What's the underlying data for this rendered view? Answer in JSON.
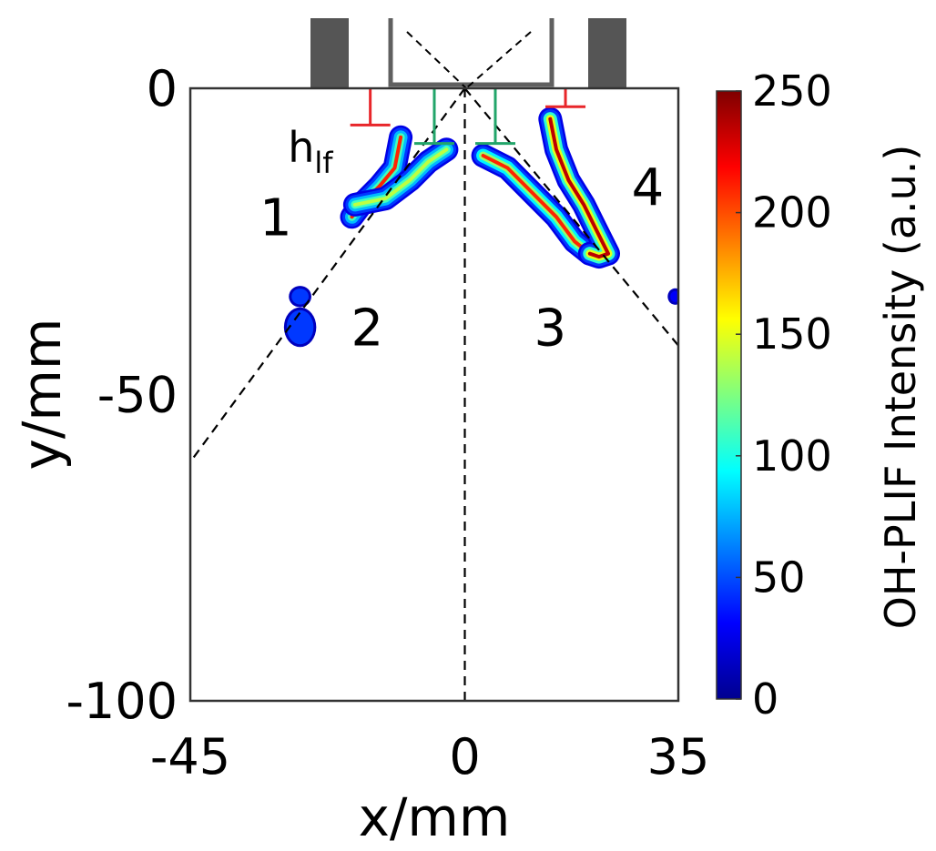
{
  "chart_data": {
    "type": "heatmap",
    "title": "",
    "xlabel": "x/mm",
    "ylabel": "y/mm",
    "xlim": [
      -45,
      35
    ],
    "ylim": [
      -100,
      0
    ],
    "x_ticks": [
      "-45",
      "0",
      "35"
    ],
    "y_ticks": [
      "0",
      "-50",
      "-100"
    ],
    "colorbar": {
      "label": "OH-PLIF Intensity (a.u.)",
      "range": [
        0,
        250
      ],
      "ticks": [
        "0",
        "50",
        "100",
        "150",
        "200",
        "250"
      ],
      "colormap": "jet"
    },
    "region_labels": [
      {
        "text": "1",
        "x": -31,
        "y": -24
      },
      {
        "text": "2",
        "x": -16,
        "y": -42
      },
      {
        "text": "3",
        "x": 14,
        "y": -42
      },
      {
        "text": "4",
        "x": 30,
        "y": -19
      }
    ],
    "annotation": {
      "base": "h",
      "subscript": "lf",
      "x": -29,
      "y": -12
    },
    "guide_lines": [
      {
        "name": "left-cone",
        "points": [
          [
            0,
            0
          ],
          [
            -45,
            -61
          ]
        ]
      },
      {
        "name": "right-cone",
        "points": [
          [
            0,
            0
          ],
          [
            35,
            -42
          ]
        ]
      },
      {
        "name": "centerline",
        "points": [
          [
            0,
            0
          ],
          [
            0,
            -100
          ]
        ]
      }
    ],
    "flame_branches": [
      {
        "name": "branch-1-outer",
        "intensity": 110,
        "peak": 210,
        "points": [
          [
            -10.5,
            -8
          ],
          [
            -11.5,
            -13
          ],
          [
            -14,
            -16
          ],
          [
            -17,
            -19
          ],
          [
            -18.5,
            -21
          ]
        ]
      },
      {
        "name": "branch-2-inner",
        "intensity": 110,
        "peak": 140,
        "points": [
          [
            -18,
            -19
          ],
          [
            -13,
            -18
          ],
          [
            -9,
            -15
          ],
          [
            -6,
            -12
          ],
          [
            -3,
            -10
          ]
        ]
      },
      {
        "name": "branch-3-inner",
        "intensity": 130,
        "peak": 210,
        "points": [
          [
            3,
            -11
          ],
          [
            7,
            -13
          ],
          [
            11,
            -17
          ],
          [
            15,
            -21
          ],
          [
            18,
            -25
          ],
          [
            20.5,
            -27
          ]
        ]
      },
      {
        "name": "branch-4-outer",
        "intensity": 150,
        "peak": 235,
        "points": [
          [
            14,
            -5
          ],
          [
            15,
            -10
          ],
          [
            17,
            -15
          ],
          [
            19.5,
            -19
          ],
          [
            21.5,
            -23
          ],
          [
            23.5,
            -27
          ],
          [
            22,
            -27.5
          ],
          [
            20.5,
            -27
          ]
        ]
      }
    ],
    "flame_spots": [
      {
        "name": "spot-1a",
        "intensity": 45,
        "x": -27,
        "y": -34,
        "rx": 1.4,
        "ry": 1.3
      },
      {
        "name": "spot-1b",
        "intensity": 45,
        "x": -27,
        "y": -39,
        "rx": 2.2,
        "ry": 2.8
      },
      {
        "name": "spot-edge",
        "intensity": 30,
        "x": 34.5,
        "y": -34,
        "rx": 0.8,
        "ry": 0.9
      }
    ],
    "liftoff_markers": [
      {
        "name": "lift-off-left-outer",
        "color": "#e8262a",
        "x": -15.5,
        "y_top": 0,
        "y_bottom": -6
      },
      {
        "name": "lift-off-left-inner",
        "color": "#22a56a",
        "x": -5,
        "y_top": 0,
        "y_bottom": -9
      },
      {
        "name": "lift-off-right-inner",
        "color": "#22a56a",
        "x": 5,
        "y_top": 0,
        "y_bottom": -9
      },
      {
        "name": "lift-off-right-outer",
        "color": "#e8262a",
        "x": 16.5,
        "y_top": 0,
        "y_bottom": -3
      }
    ],
    "grid": false,
    "legend": "colorbar-right"
  }
}
